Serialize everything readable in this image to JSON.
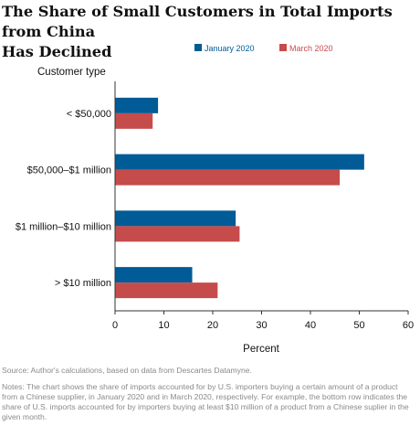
{
  "header": {
    "title_line1": "The Share of Small Customers in Total Imports from China",
    "title_line2": "Has Declined"
  },
  "chart_data": {
    "type": "bar",
    "orientation": "horizontal",
    "title": "The Share of Small Customers in Total Imports from China Has Declined",
    "categories_label": "Customer type",
    "categories": [
      "< $50,000",
      "$50,000–$1 million",
      "$1 million–$10 million",
      "> $10 million"
    ],
    "series": [
      {
        "name": "January 2020",
        "color": "#005b96",
        "values": [
          8.8,
          51.0,
          24.7,
          15.8
        ]
      },
      {
        "name": "March 2020",
        "color": "#c64b4b",
        "values": [
          7.7,
          46.0,
          25.5,
          21.0
        ]
      }
    ],
    "xlabel": "Percent",
    "xlim": [
      0,
      60
    ],
    "xticks": [
      0,
      10,
      20,
      30,
      40,
      50,
      60
    ],
    "grid": false,
    "legend": "top-right"
  },
  "footer": {
    "source": "Source: Author's calculations, based on data from Descartes Datamyne.",
    "notes": "Notes: The chart shows the share of imports accounted for by U.S. importers buying a certain amount of a product from a Chinese supplier, in January 2020 and in March 2020, respectively. For example, the bottom row indicates the share of U.S. imports accounted for by importers buying at least $10 million of a product from a Chinese suplier in the given month."
  }
}
